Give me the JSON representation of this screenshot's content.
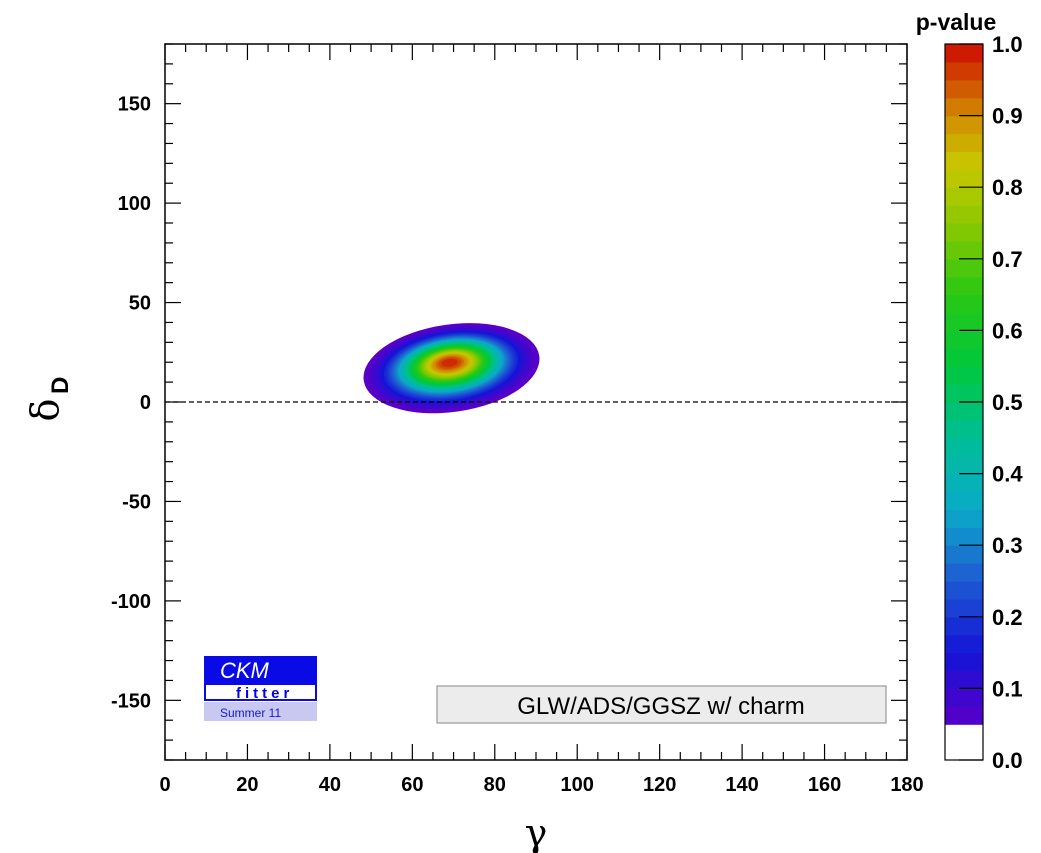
{
  "chart_data": {
    "type": "heatmap",
    "title": "",
    "xlabel": "γ",
    "ylabel_symbol": "δ",
    "ylabel_subscript": "D",
    "xlim": [
      0,
      180
    ],
    "ylim": [
      -180,
      180
    ],
    "x_ticks": [
      "0",
      "20",
      "40",
      "60",
      "80",
      "100",
      "120",
      "140",
      "160",
      "180"
    ],
    "y_ticks": [
      "-150",
      "-100",
      "-50",
      "0",
      "50",
      "100",
      "150"
    ],
    "colorbar": {
      "title": "p-value",
      "range": [
        0,
        1
      ],
      "ticks": [
        "0.0",
        "0.1",
        "0.2",
        "0.3",
        "0.4",
        "0.5",
        "0.6",
        "0.7",
        "0.8",
        "0.9",
        "1.0"
      ]
    },
    "best_fit": {
      "gamma": 69,
      "delta_D": 20
    },
    "confidence_region": {
      "description_levels": [
        0.05,
        1.0
      ],
      "gamma_range": [
        48,
        91
      ],
      "delta_D_range": [
        -5,
        39
      ]
    },
    "reference_line": {
      "delta_D": 0,
      "style": "dashed"
    },
    "legend": "GLW/ADS/GGSZ w/ charm"
  },
  "logo": {
    "line1": "CKM",
    "line2": "fitter",
    "line3": "Summer 11"
  },
  "colors": {
    "logo_blue": "#0a0ae6",
    "logo_light": "#c8c8f0",
    "legend_bg": "#ececec",
    "legend_border": "#9a9a9a"
  }
}
